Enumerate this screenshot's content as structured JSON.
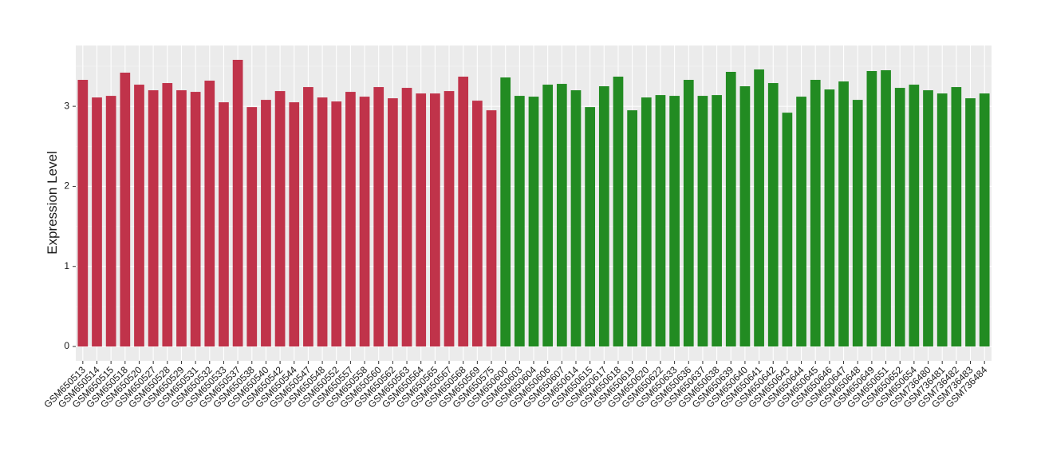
{
  "chart_data": {
    "type": "bar",
    "y_label": "Expression Level",
    "categories": [
      "GSM650513",
      "GSM650514",
      "GSM650515",
      "GSM650518",
      "GSM650520",
      "GSM650527",
      "GSM650528",
      "GSM650529",
      "GSM650531",
      "GSM650532",
      "GSM650533",
      "GSM650537",
      "GSM650538",
      "GSM650540",
      "GSM650542",
      "GSM650544",
      "GSM650547",
      "GSM650548",
      "GSM650552",
      "GSM650557",
      "GSM650558",
      "GSM650560",
      "GSM650562",
      "GSM650563",
      "GSM650564",
      "GSM650565",
      "GSM650567",
      "GSM650568",
      "GSM650569",
      "GSM650575",
      "GSM650600",
      "GSM650603",
      "GSM650604",
      "GSM650606",
      "GSM650607",
      "GSM650614",
      "GSM650615",
      "GSM650617",
      "GSM650618",
      "GSM650619",
      "GSM650620",
      "GSM650622",
      "GSM650633",
      "GSM650636",
      "GSM650637",
      "GSM650638",
      "GSM650639",
      "GSM650640",
      "GSM650641",
      "GSM650642",
      "GSM650643",
      "GSM650644",
      "GSM650645",
      "GSM650646",
      "GSM650647",
      "GSM650648",
      "GSM650649",
      "GSM650651",
      "GSM650652",
      "GSM650654",
      "GSM736480",
      "GSM736481",
      "GSM736482",
      "GSM736483",
      "GSM736484"
    ],
    "values": [
      3.33,
      3.11,
      3.13,
      3.42,
      3.27,
      3.2,
      3.29,
      3.2,
      3.18,
      3.32,
      3.05,
      3.58,
      2.99,
      3.08,
      3.19,
      3.05,
      3.24,
      3.11,
      3.06,
      3.18,
      3.12,
      3.24,
      3.1,
      3.23,
      3.16,
      3.16,
      3.19,
      3.37,
      3.07,
      2.95,
      3.36,
      3.13,
      3.12,
      3.27,
      3.28,
      3.2,
      2.99,
      3.25,
      3.37,
      2.95,
      3.11,
      3.14,
      3.13,
      3.33,
      3.13,
      3.14,
      3.43,
      3.25,
      3.46,
      3.29,
      2.92,
      3.12,
      3.33,
      3.21,
      3.31,
      3.08,
      3.44,
      3.45,
      3.23,
      3.27,
      3.2,
      3.16,
      3.24,
      3.1,
      3.16
    ],
    "colors": [
      "#c0334a",
      "#c0334a",
      "#c0334a",
      "#c0334a",
      "#c0334a",
      "#c0334a",
      "#c0334a",
      "#c0334a",
      "#c0334a",
      "#c0334a",
      "#c0334a",
      "#c0334a",
      "#c0334a",
      "#c0334a",
      "#c0334a",
      "#c0334a",
      "#c0334a",
      "#c0334a",
      "#c0334a",
      "#c0334a",
      "#c0334a",
      "#c0334a",
      "#c0334a",
      "#c0334a",
      "#c0334a",
      "#c0334a",
      "#c0334a",
      "#c0334a",
      "#c0334a",
      "#c0334a",
      "#228b22",
      "#228b22",
      "#228b22",
      "#228b22",
      "#228b22",
      "#228b22",
      "#228b22",
      "#228b22",
      "#228b22",
      "#228b22",
      "#228b22",
      "#228b22",
      "#228b22",
      "#228b22",
      "#228b22",
      "#228b22",
      "#228b22",
      "#228b22",
      "#228b22",
      "#228b22",
      "#228b22",
      "#228b22",
      "#228b22",
      "#228b22",
      "#228b22",
      "#228b22",
      "#228b22",
      "#228b22",
      "#228b22",
      "#228b22",
      "#228b22",
      "#228b22",
      "#228b22",
      "#228b22",
      "#228b22"
    ],
    "ylim": [
      -0.179,
      3.759
    ],
    "yticks": [
      0,
      1,
      2,
      3
    ],
    "grid": true
  }
}
